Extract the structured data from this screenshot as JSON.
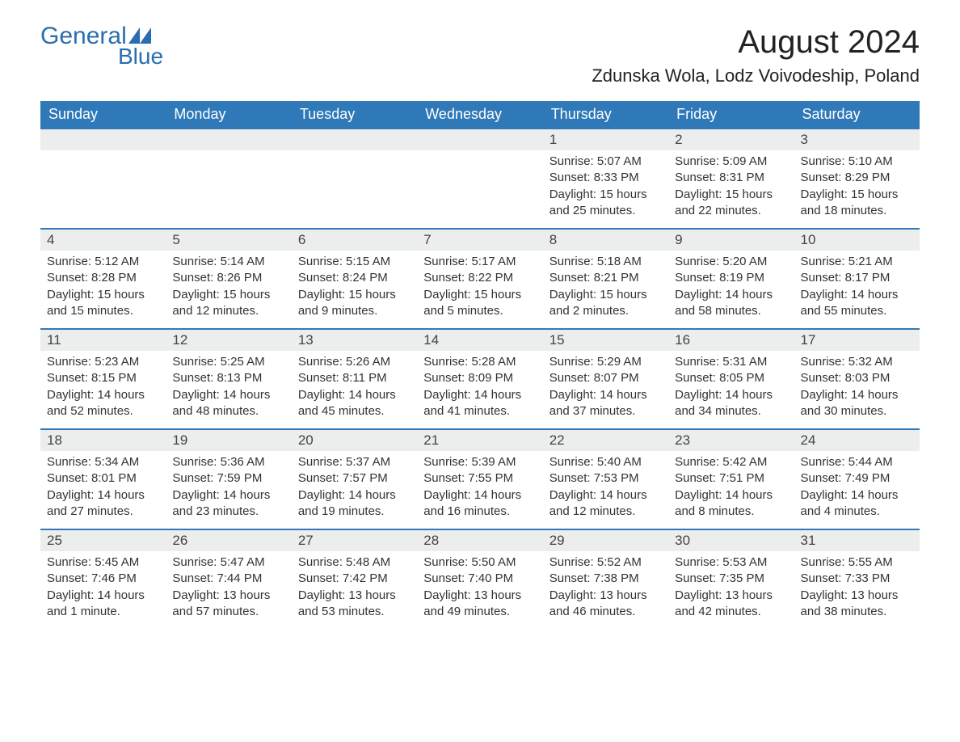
{
  "logo": {
    "text_general": "General",
    "text_blue": "Blue",
    "color": "#2a6db0"
  },
  "header": {
    "month_title": "August 2024",
    "location": "Zdunska Wola, Lodz Voivodeship, Poland"
  },
  "styling": {
    "header_bg": "#3079b8",
    "header_text": "#ffffff",
    "daynum_bg": "#eceded",
    "body_bg": "#ffffff",
    "text_color": "#333333",
    "border_color": "#3079b8",
    "font_family": "Arial, Helvetica, sans-serif",
    "title_fontsize": 40,
    "location_fontsize": 22,
    "weekday_fontsize": 18,
    "body_fontsize": 15
  },
  "weekdays": [
    "Sunday",
    "Monday",
    "Tuesday",
    "Wednesday",
    "Thursday",
    "Friday",
    "Saturday"
  ],
  "weeks": [
    [
      null,
      null,
      null,
      null,
      {
        "day": "1",
        "sunrise": "Sunrise: 5:07 AM",
        "sunset": "Sunset: 8:33 PM",
        "daylight": "Daylight: 15 hours and 25 minutes."
      },
      {
        "day": "2",
        "sunrise": "Sunrise: 5:09 AM",
        "sunset": "Sunset: 8:31 PM",
        "daylight": "Daylight: 15 hours and 22 minutes."
      },
      {
        "day": "3",
        "sunrise": "Sunrise: 5:10 AM",
        "sunset": "Sunset: 8:29 PM",
        "daylight": "Daylight: 15 hours and 18 minutes."
      }
    ],
    [
      {
        "day": "4",
        "sunrise": "Sunrise: 5:12 AM",
        "sunset": "Sunset: 8:28 PM",
        "daylight": "Daylight: 15 hours and 15 minutes."
      },
      {
        "day": "5",
        "sunrise": "Sunrise: 5:14 AM",
        "sunset": "Sunset: 8:26 PM",
        "daylight": "Daylight: 15 hours and 12 minutes."
      },
      {
        "day": "6",
        "sunrise": "Sunrise: 5:15 AM",
        "sunset": "Sunset: 8:24 PM",
        "daylight": "Daylight: 15 hours and 9 minutes."
      },
      {
        "day": "7",
        "sunrise": "Sunrise: 5:17 AM",
        "sunset": "Sunset: 8:22 PM",
        "daylight": "Daylight: 15 hours and 5 minutes."
      },
      {
        "day": "8",
        "sunrise": "Sunrise: 5:18 AM",
        "sunset": "Sunset: 8:21 PM",
        "daylight": "Daylight: 15 hours and 2 minutes."
      },
      {
        "day": "9",
        "sunrise": "Sunrise: 5:20 AM",
        "sunset": "Sunset: 8:19 PM",
        "daylight": "Daylight: 14 hours and 58 minutes."
      },
      {
        "day": "10",
        "sunrise": "Sunrise: 5:21 AM",
        "sunset": "Sunset: 8:17 PM",
        "daylight": "Daylight: 14 hours and 55 minutes."
      }
    ],
    [
      {
        "day": "11",
        "sunrise": "Sunrise: 5:23 AM",
        "sunset": "Sunset: 8:15 PM",
        "daylight": "Daylight: 14 hours and 52 minutes."
      },
      {
        "day": "12",
        "sunrise": "Sunrise: 5:25 AM",
        "sunset": "Sunset: 8:13 PM",
        "daylight": "Daylight: 14 hours and 48 minutes."
      },
      {
        "day": "13",
        "sunrise": "Sunrise: 5:26 AM",
        "sunset": "Sunset: 8:11 PM",
        "daylight": "Daylight: 14 hours and 45 minutes."
      },
      {
        "day": "14",
        "sunrise": "Sunrise: 5:28 AM",
        "sunset": "Sunset: 8:09 PM",
        "daylight": "Daylight: 14 hours and 41 minutes."
      },
      {
        "day": "15",
        "sunrise": "Sunrise: 5:29 AM",
        "sunset": "Sunset: 8:07 PM",
        "daylight": "Daylight: 14 hours and 37 minutes."
      },
      {
        "day": "16",
        "sunrise": "Sunrise: 5:31 AM",
        "sunset": "Sunset: 8:05 PM",
        "daylight": "Daylight: 14 hours and 34 minutes."
      },
      {
        "day": "17",
        "sunrise": "Sunrise: 5:32 AM",
        "sunset": "Sunset: 8:03 PM",
        "daylight": "Daylight: 14 hours and 30 minutes."
      }
    ],
    [
      {
        "day": "18",
        "sunrise": "Sunrise: 5:34 AM",
        "sunset": "Sunset: 8:01 PM",
        "daylight": "Daylight: 14 hours and 27 minutes."
      },
      {
        "day": "19",
        "sunrise": "Sunrise: 5:36 AM",
        "sunset": "Sunset: 7:59 PM",
        "daylight": "Daylight: 14 hours and 23 minutes."
      },
      {
        "day": "20",
        "sunrise": "Sunrise: 5:37 AM",
        "sunset": "Sunset: 7:57 PM",
        "daylight": "Daylight: 14 hours and 19 minutes."
      },
      {
        "day": "21",
        "sunrise": "Sunrise: 5:39 AM",
        "sunset": "Sunset: 7:55 PM",
        "daylight": "Daylight: 14 hours and 16 minutes."
      },
      {
        "day": "22",
        "sunrise": "Sunrise: 5:40 AM",
        "sunset": "Sunset: 7:53 PM",
        "daylight": "Daylight: 14 hours and 12 minutes."
      },
      {
        "day": "23",
        "sunrise": "Sunrise: 5:42 AM",
        "sunset": "Sunset: 7:51 PM",
        "daylight": "Daylight: 14 hours and 8 minutes."
      },
      {
        "day": "24",
        "sunrise": "Sunrise: 5:44 AM",
        "sunset": "Sunset: 7:49 PM",
        "daylight": "Daylight: 14 hours and 4 minutes."
      }
    ],
    [
      {
        "day": "25",
        "sunrise": "Sunrise: 5:45 AM",
        "sunset": "Sunset: 7:46 PM",
        "daylight": "Daylight: 14 hours and 1 minute."
      },
      {
        "day": "26",
        "sunrise": "Sunrise: 5:47 AM",
        "sunset": "Sunset: 7:44 PM",
        "daylight": "Daylight: 13 hours and 57 minutes."
      },
      {
        "day": "27",
        "sunrise": "Sunrise: 5:48 AM",
        "sunset": "Sunset: 7:42 PM",
        "daylight": "Daylight: 13 hours and 53 minutes."
      },
      {
        "day": "28",
        "sunrise": "Sunrise: 5:50 AM",
        "sunset": "Sunset: 7:40 PM",
        "daylight": "Daylight: 13 hours and 49 minutes."
      },
      {
        "day": "29",
        "sunrise": "Sunrise: 5:52 AM",
        "sunset": "Sunset: 7:38 PM",
        "daylight": "Daylight: 13 hours and 46 minutes."
      },
      {
        "day": "30",
        "sunrise": "Sunrise: 5:53 AM",
        "sunset": "Sunset: 7:35 PM",
        "daylight": "Daylight: 13 hours and 42 minutes."
      },
      {
        "day": "31",
        "sunrise": "Sunrise: 5:55 AM",
        "sunset": "Sunset: 7:33 PM",
        "daylight": "Daylight: 13 hours and 38 minutes."
      }
    ]
  ]
}
